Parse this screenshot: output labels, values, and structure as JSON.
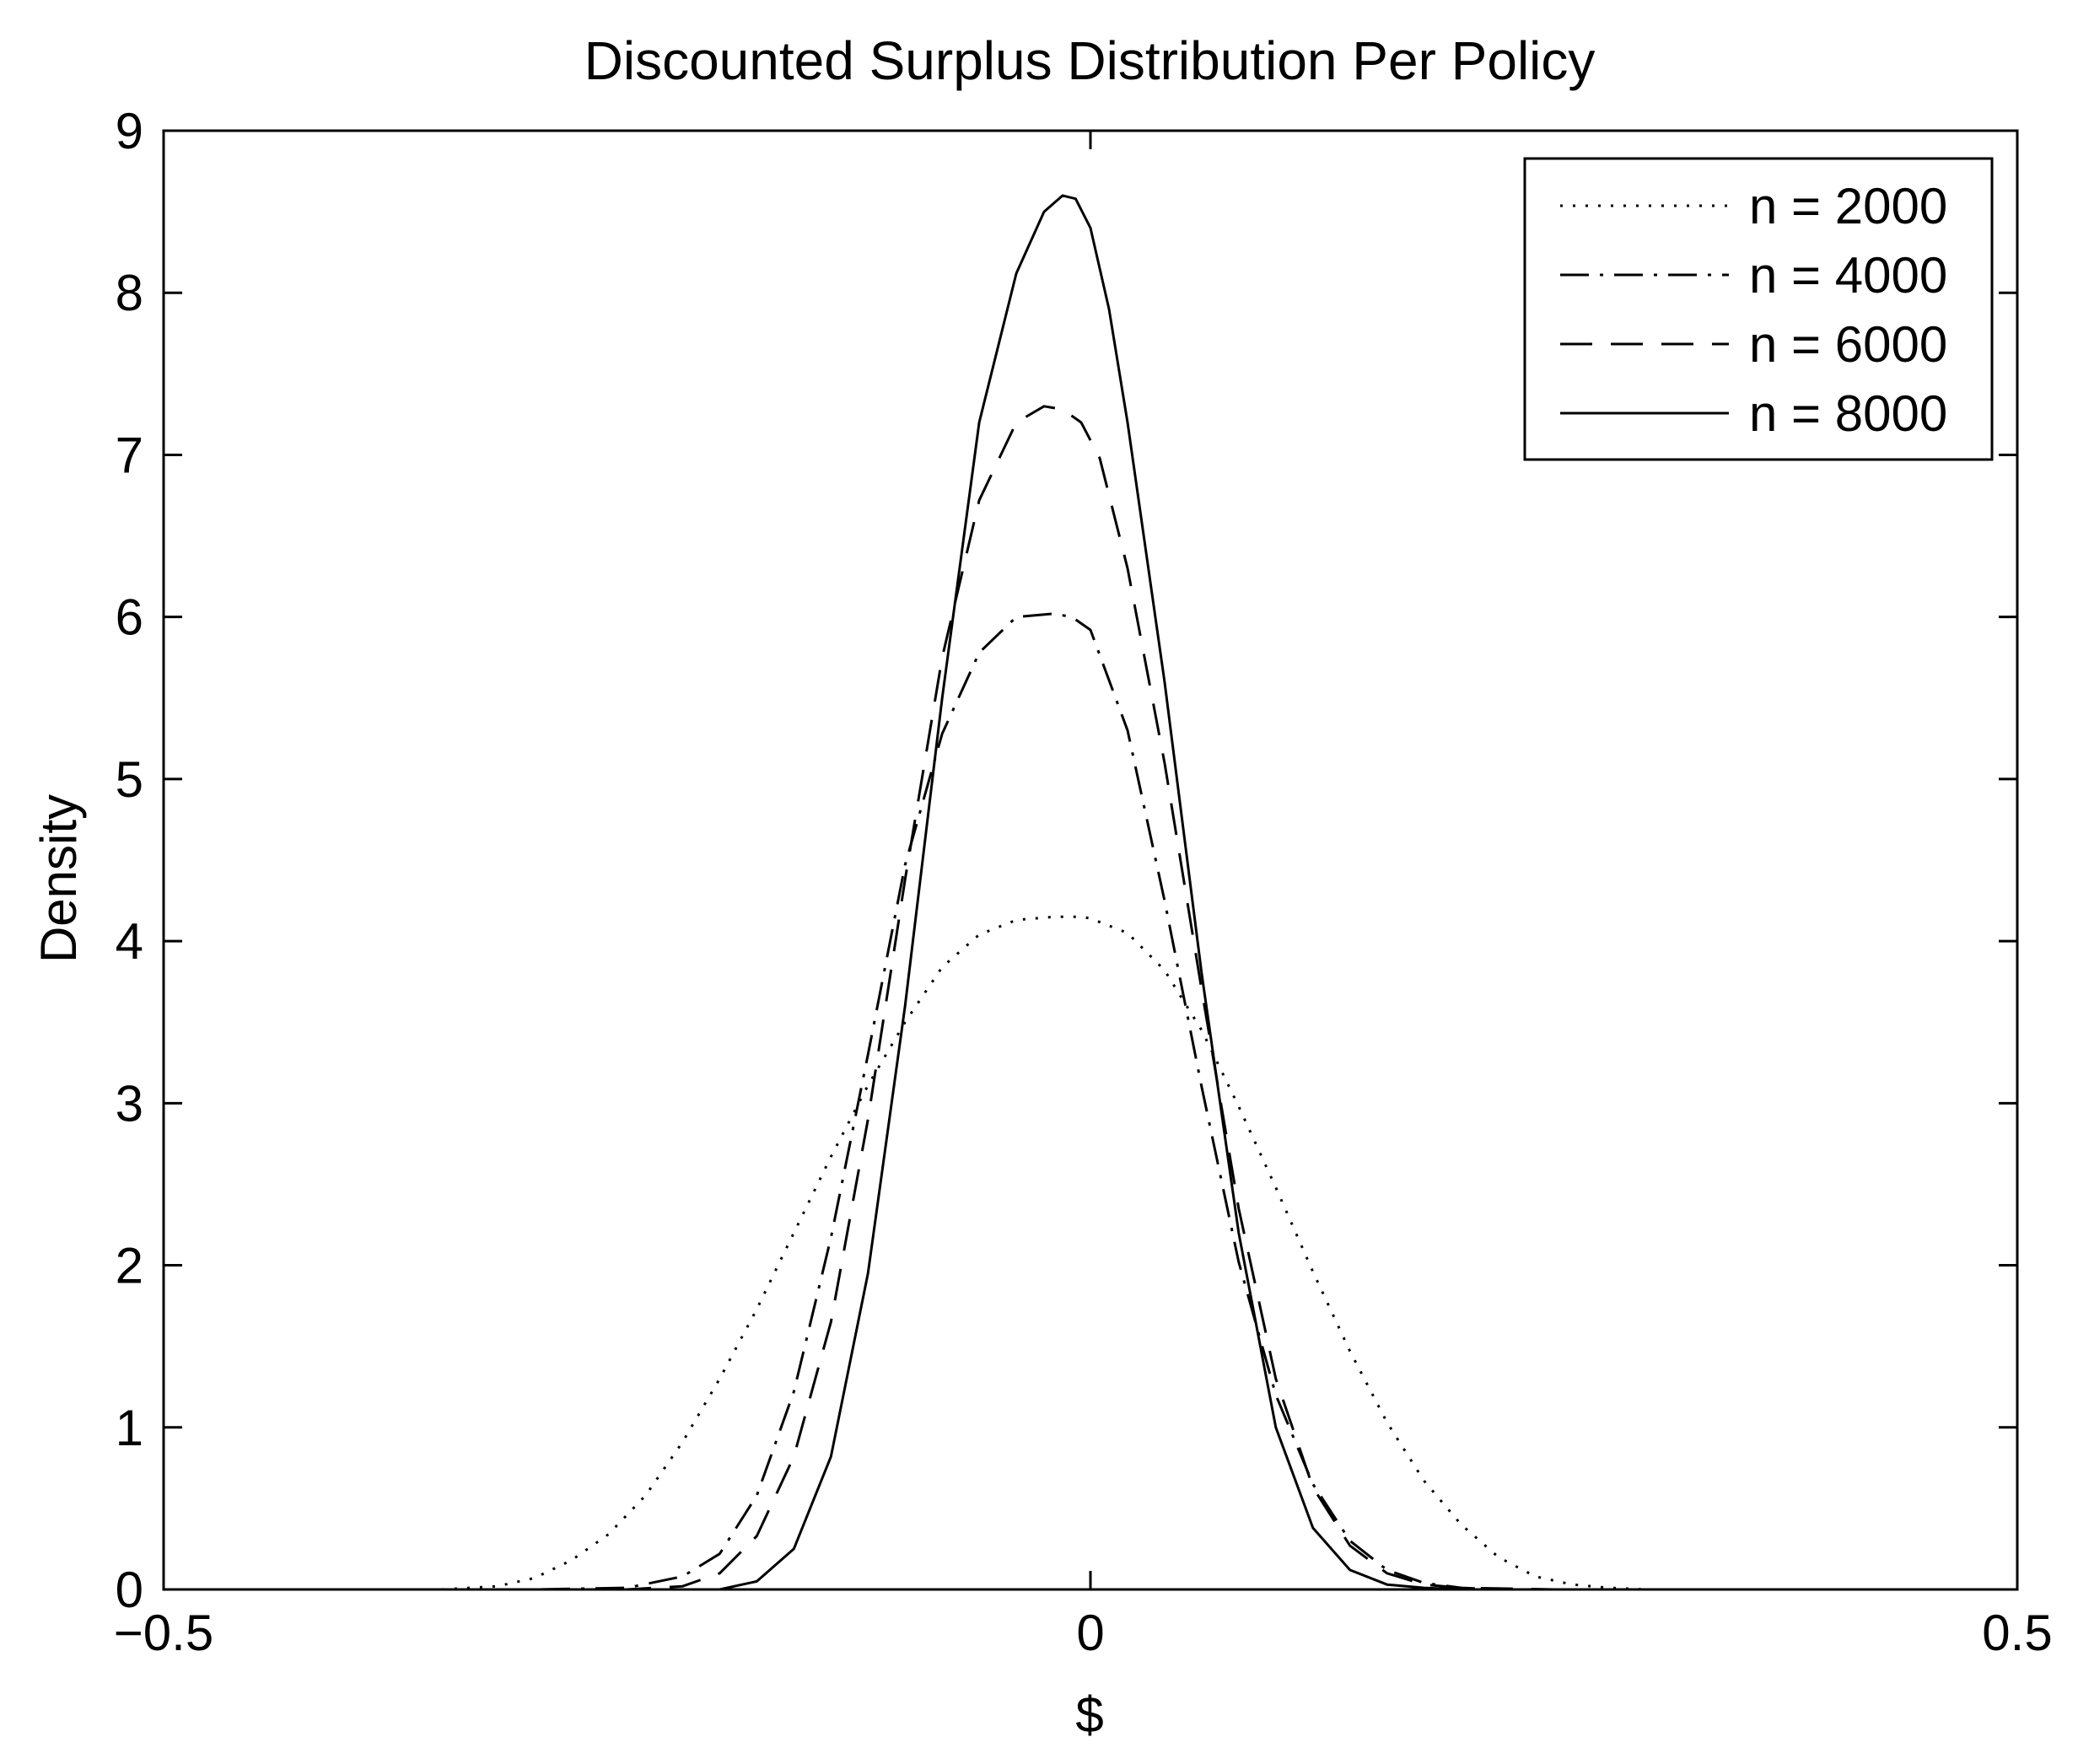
{
  "chart_data": {
    "type": "line",
    "title": "Discounted Surplus Distribution Per Policy",
    "xlabel": "$",
    "ylabel": "Density",
    "xlim": [
      -0.5,
      0.5
    ],
    "ylim": [
      0,
      9
    ],
    "x_ticks": [
      -0.5,
      0,
      0.5
    ],
    "x_tick_labels": [
      "−0.5",
      "0",
      "0.5"
    ],
    "y_ticks": [
      0,
      1,
      2,
      3,
      4,
      5,
      6,
      7,
      8,
      9
    ],
    "y_tick_labels": [
      "0",
      "1",
      "2",
      "3",
      "4",
      "5",
      "6",
      "7",
      "8",
      "9"
    ],
    "grid": false,
    "legend_position": "top-right",
    "series": [
      {
        "name": "n = 2000",
        "line_style": "dotted",
        "x": [
          -0.5,
          -0.4,
          -0.35,
          -0.32,
          -0.3,
          -0.28,
          -0.26,
          -0.24,
          -0.22,
          -0.2,
          -0.18,
          -0.16,
          -0.14,
          -0.12,
          -0.1,
          -0.08,
          -0.06,
          -0.04,
          -0.02,
          -0.005,
          0,
          0.02,
          0.04,
          0.06,
          0.08,
          0.1,
          0.12,
          0.14,
          0.16,
          0.18,
          0.2,
          0.22,
          0.24,
          0.26,
          0.28,
          0.3,
          0.35,
          0.4,
          0.5
        ],
        "y": [
          0.0,
          0.0,
          0.0,
          0.02,
          0.07,
          0.18,
          0.34,
          0.58,
          0.91,
          1.3,
          1.73,
          2.2,
          2.67,
          3.11,
          3.5,
          3.84,
          4.04,
          4.13,
          4.15,
          4.15,
          4.14,
          4.05,
          3.82,
          3.45,
          2.98,
          2.48,
          1.96,
          1.47,
          1.03,
          0.67,
          0.4,
          0.2,
          0.08,
          0.03,
          0.01,
          0.0,
          0.0,
          0.0,
          0.0
        ]
      },
      {
        "name": "n = 4000",
        "line_style": "dashdot",
        "x": [
          -0.5,
          -0.3,
          -0.25,
          -0.22,
          -0.2,
          -0.18,
          -0.16,
          -0.14,
          -0.12,
          -0.1,
          -0.08,
          -0.06,
          -0.04,
          -0.02,
          -0.01,
          0,
          0.02,
          0.04,
          0.06,
          0.08,
          0.1,
          0.12,
          0.14,
          0.16,
          0.18,
          0.2,
          0.22,
          0.25,
          0.3,
          0.5
        ],
        "y": [
          0.0,
          0.0,
          0.01,
          0.08,
          0.22,
          0.58,
          1.22,
          2.17,
          3.3,
          4.47,
          5.28,
          5.78,
          6.0,
          6.02,
          6.0,
          5.92,
          5.3,
          4.25,
          3.1,
          2.02,
          1.2,
          0.65,
          0.3,
          0.12,
          0.04,
          0.01,
          0.0,
          0.0,
          0.0,
          0.0
        ]
      },
      {
        "name": "n = 6000",
        "line_style": "dashed",
        "x": [
          -0.5,
          -0.25,
          -0.22,
          -0.2,
          -0.18,
          -0.16,
          -0.14,
          -0.12,
          -0.1,
          -0.08,
          -0.06,
          -0.04,
          -0.025,
          -0.015,
          -0.005,
          0.005,
          0.02,
          0.04,
          0.06,
          0.08,
          0.1,
          0.12,
          0.14,
          0.16,
          0.18,
          0.2,
          0.25,
          0.5
        ],
        "y": [
          0.0,
          0.0,
          0.02,
          0.1,
          0.33,
          0.82,
          1.65,
          2.9,
          4.38,
          5.75,
          6.72,
          7.2,
          7.3,
          7.28,
          7.2,
          6.98,
          6.3,
          5.1,
          3.7,
          2.35,
          1.3,
          0.63,
          0.27,
          0.1,
          0.03,
          0.01,
          0.0,
          0.0
        ]
      },
      {
        "name": "n = 8000",
        "line_style": "solid",
        "x": [
          -0.5,
          -0.2,
          -0.18,
          -0.16,
          -0.14,
          -0.12,
          -0.1,
          -0.08,
          -0.06,
          -0.04,
          -0.025,
          -0.015,
          -0.008,
          0.0,
          0.01,
          0.02,
          0.04,
          0.06,
          0.08,
          0.1,
          0.12,
          0.14,
          0.16,
          0.18,
          0.2,
          0.5
        ],
        "y": [
          0.0,
          0.0,
          0.05,
          0.25,
          0.82,
          1.95,
          3.6,
          5.5,
          7.2,
          8.12,
          8.5,
          8.6,
          8.58,
          8.4,
          7.9,
          7.2,
          5.6,
          3.8,
          2.2,
          1.0,
          0.38,
          0.12,
          0.03,
          0.01,
          0.0,
          0.0
        ]
      }
    ]
  }
}
